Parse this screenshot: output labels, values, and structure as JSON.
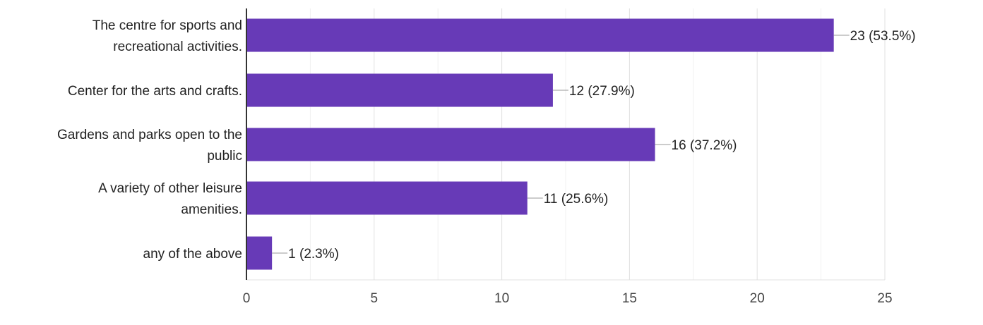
{
  "chart_data": {
    "type": "bar",
    "orientation": "horizontal",
    "categories": [
      [
        "The centre for sports and",
        "recreational activities."
      ],
      [
        "Center for the arts and crafts."
      ],
      [
        "Gardens and parks open to the",
        "public"
      ],
      [
        "A variety of other leisure",
        "amenities."
      ],
      [
        "any of the above"
      ]
    ],
    "values": [
      23,
      12,
      16,
      11,
      1
    ],
    "data_labels": [
      "23 (53.5%)",
      "12 (27.9%)",
      "16 (37.2%)",
      "11 (25.6%)",
      "1 (2.3%)"
    ],
    "xlim": [
      0,
      25
    ],
    "x_ticks": [
      "0",
      "5",
      "10",
      "15",
      "20",
      "25"
    ],
    "grid": true,
    "title": "",
    "xlabel": "",
    "ylabel": "",
    "colors": {
      "bar": "#673ab7",
      "grid_major": "#e0e0e0",
      "grid_minor": "#f1f1f1",
      "axis": "#333333",
      "leader": "#999999",
      "text": "#222222",
      "tick_text": "#444444"
    }
  }
}
